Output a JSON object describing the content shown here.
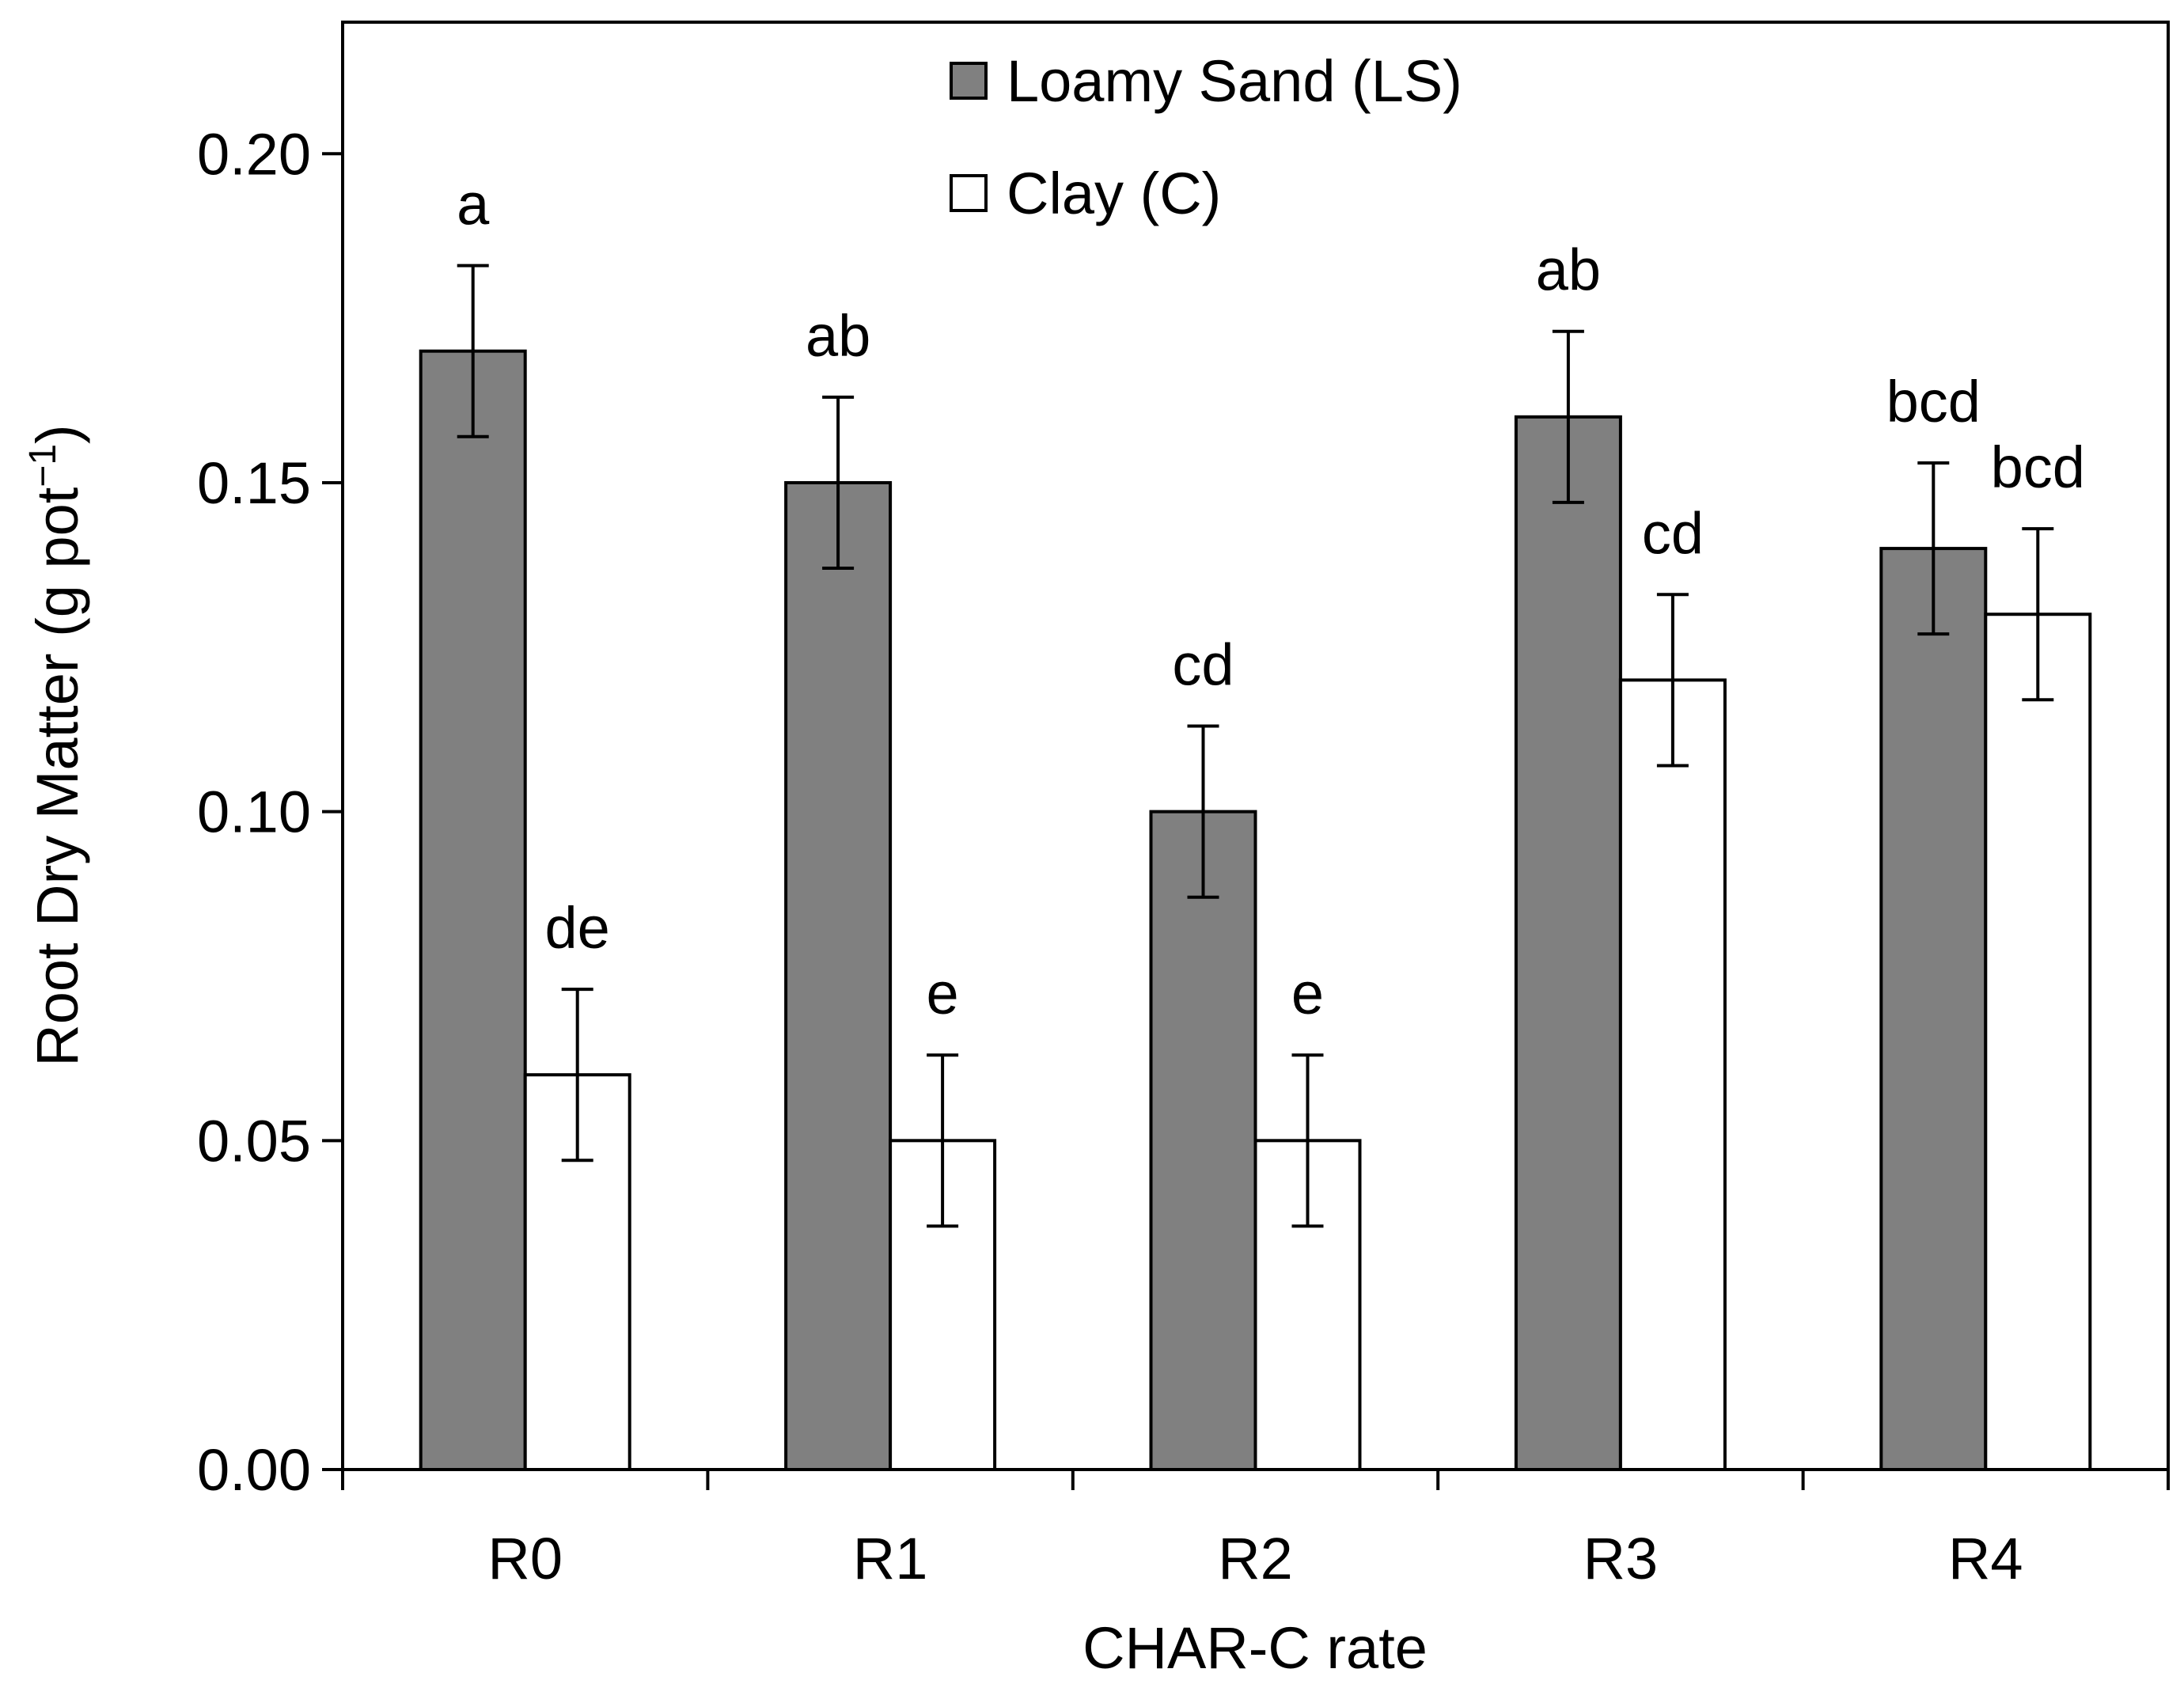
{
  "chart_data": {
    "type": "bar",
    "title": "",
    "xlabel": "CHAR-C rate",
    "ylabel": "Root Dry Matter (g pot",
    "ylabel_superscript": "−1",
    "ylabel_close": ")",
    "ylim": [
      0,
      0.22
    ],
    "yticks": [
      "0.00",
      "0.05",
      "0.10",
      "0.15",
      "0.20"
    ],
    "categories": [
      "R0",
      "R1",
      "R2",
      "R3",
      "R4"
    ],
    "series": [
      {
        "name": "Loamy Sand (LS)",
        "color": "#808080",
        "values": [
          0.17,
          0.15,
          0.1,
          0.16,
          0.14
        ],
        "errors": [
          0.013,
          0.013,
          0.013,
          0.013,
          0.013
        ],
        "letters": [
          "a",
          "ab",
          "cd",
          "ab",
          "bcd"
        ]
      },
      {
        "name": "Clay (C)",
        "color": "#ffffff",
        "values": [
          0.06,
          0.05,
          0.05,
          0.12,
          0.13
        ],
        "errors": [
          0.013,
          0.013,
          0.013,
          0.013,
          0.013
        ],
        "letters": [
          "de",
          "e",
          "e",
          "cd",
          "bcd"
        ]
      }
    ],
    "legend_position": "top-center",
    "grid": false
  }
}
